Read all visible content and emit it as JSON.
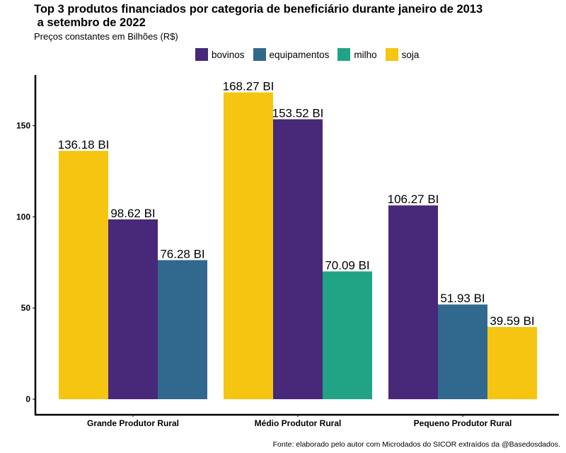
{
  "chart_data": {
    "type": "bar",
    "title": "Top 3 produtos financiados por categoria de beneficiário durante janeiro de 2013\n a setembro de 2022",
    "subtitle": "Preços constantes em Bilhões (R$)",
    "caption": "Fonte: elaborado pelo autor com Microdados do SICOR extraídos da @Basedosdados.",
    "xlabel": "",
    "ylabel": "",
    "ylim": [
      0,
      177
    ],
    "yticks": [
      0,
      50,
      100,
      150
    ],
    "legend_position": "top",
    "legend": [
      {
        "name": "bovinos",
        "color": "#482878"
      },
      {
        "name": "equipamentos",
        "color": "#31688E"
      },
      {
        "name": "milho",
        "color": "#21A386"
      },
      {
        "name": "soja",
        "color": "#F5C511"
      }
    ],
    "groups": [
      {
        "category": "Grande Produtor Rural",
        "bars": [
          {
            "series": "soja",
            "value": 136.18,
            "label": "136.18 BI"
          },
          {
            "series": "bovinos",
            "value": 98.62,
            "label": "98.62 BI"
          },
          {
            "series": "equipamentos",
            "value": 76.28,
            "label": "76.28 BI"
          }
        ]
      },
      {
        "category": "Médio Produtor Rural",
        "bars": [
          {
            "series": "soja",
            "value": 168.27,
            "label": "168.27 BI"
          },
          {
            "series": "bovinos",
            "value": 153.52,
            "label": "153.52 BI"
          },
          {
            "series": "milho",
            "value": 70.09,
            "label": "70.09 BI"
          }
        ]
      },
      {
        "category": "Pequeno Produtor Rural",
        "bars": [
          {
            "series": "bovinos",
            "value": 106.27,
            "label": "106.27 BI"
          },
          {
            "series": "equipamentos",
            "value": 51.93,
            "label": "51.93 BI"
          },
          {
            "series": "soja",
            "value": 39.59,
            "label": "39.59 BI"
          }
        ]
      }
    ]
  }
}
